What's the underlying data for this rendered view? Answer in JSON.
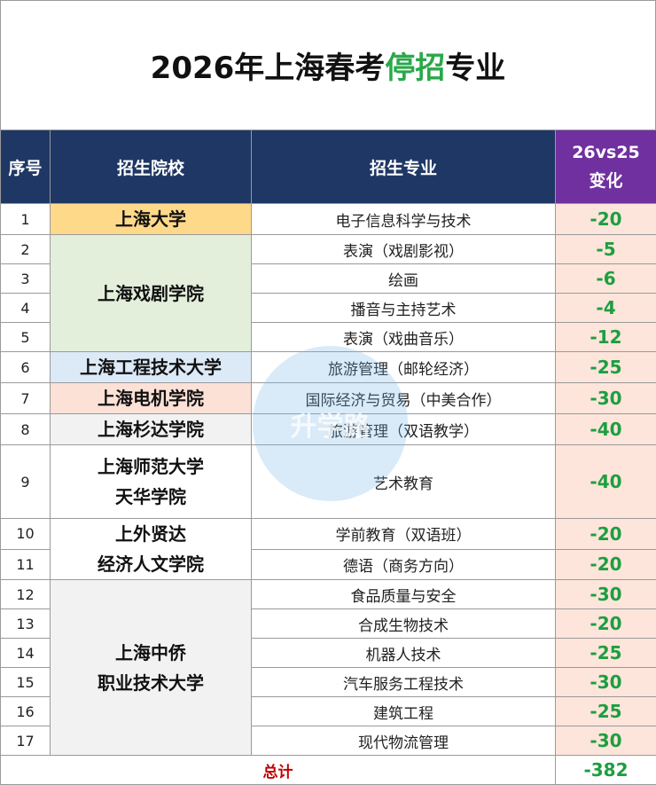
{
  "title": {
    "prefix": "2026年上海春考",
    "highlight": "停招",
    "suffix": "专业"
  },
  "headers": {
    "index": "序号",
    "school": "招生院校",
    "major": "招生专业",
    "change_line1": "26vs25",
    "change_line2": "变化"
  },
  "rows": [
    {
      "index": "1",
      "major": "电子信息科学与技术",
      "change": "-20"
    },
    {
      "index": "2",
      "major": "表演（戏剧影视）",
      "change": "-5"
    },
    {
      "index": "3",
      "major": "绘画",
      "change": "-6"
    },
    {
      "index": "4",
      "major": "播音与主持艺术",
      "change": "-4"
    },
    {
      "index": "5",
      "major": "表演（戏曲音乐）",
      "change": "-12"
    },
    {
      "index": "6",
      "major": "旅游管理（邮轮经济）",
      "change": "-25"
    },
    {
      "index": "7",
      "major": "国际经济与贸易（中美合作）",
      "change": "-30"
    },
    {
      "index": "8",
      "major": "旅游管理（双语教学）",
      "change": "-40"
    },
    {
      "index": "9",
      "major": "艺术教育",
      "change": "-40"
    },
    {
      "index": "10",
      "major": "学前教育（双语班）",
      "change": "-20"
    },
    {
      "index": "11",
      "major": "德语（商务方向）",
      "change": "-20"
    },
    {
      "index": "12",
      "major": "食品质量与安全",
      "change": "-30"
    },
    {
      "index": "13",
      "major": "合成生物技术",
      "change": "-20"
    },
    {
      "index": "14",
      "major": "机器人技术",
      "change": "-25"
    },
    {
      "index": "15",
      "major": "汽车服务工程技术",
      "change": "-30"
    },
    {
      "index": "16",
      "major": "建筑工程",
      "change": "-25"
    },
    {
      "index": "17",
      "major": "现代物流管理",
      "change": "-30"
    }
  ],
  "schools": {
    "shu": "上海大学",
    "sta": "上海戏剧学院",
    "sues": "上海工程技术大学",
    "sdju": "上海电机学院",
    "sandau": "上海杉达学院",
    "tianhua_line1": "上海师范大学",
    "tianhua_line2": "天华学院",
    "xianda_line1": "上外贤达",
    "xianda_line2": "经济人文学院",
    "sqc_line1": "上海中侨",
    "sqc_line2": "职业技术大学"
  },
  "total": {
    "label": "总计",
    "value": "-382"
  },
  "watermark_text": "升学路",
  "colors": {
    "header_bg": "#1f3764",
    "change_header_bg": "#7030a0",
    "change_cell_bg": "#fde5db",
    "value_green": "#1e9e40",
    "total_red": "#c00000",
    "shu_bg": "#ffd98a",
    "sta_bg": "#e3efdb",
    "sues_bg": "#dce9f7",
    "sdju_bg": "#fce1d6",
    "neutral_bg": "#f2f2f2"
  }
}
